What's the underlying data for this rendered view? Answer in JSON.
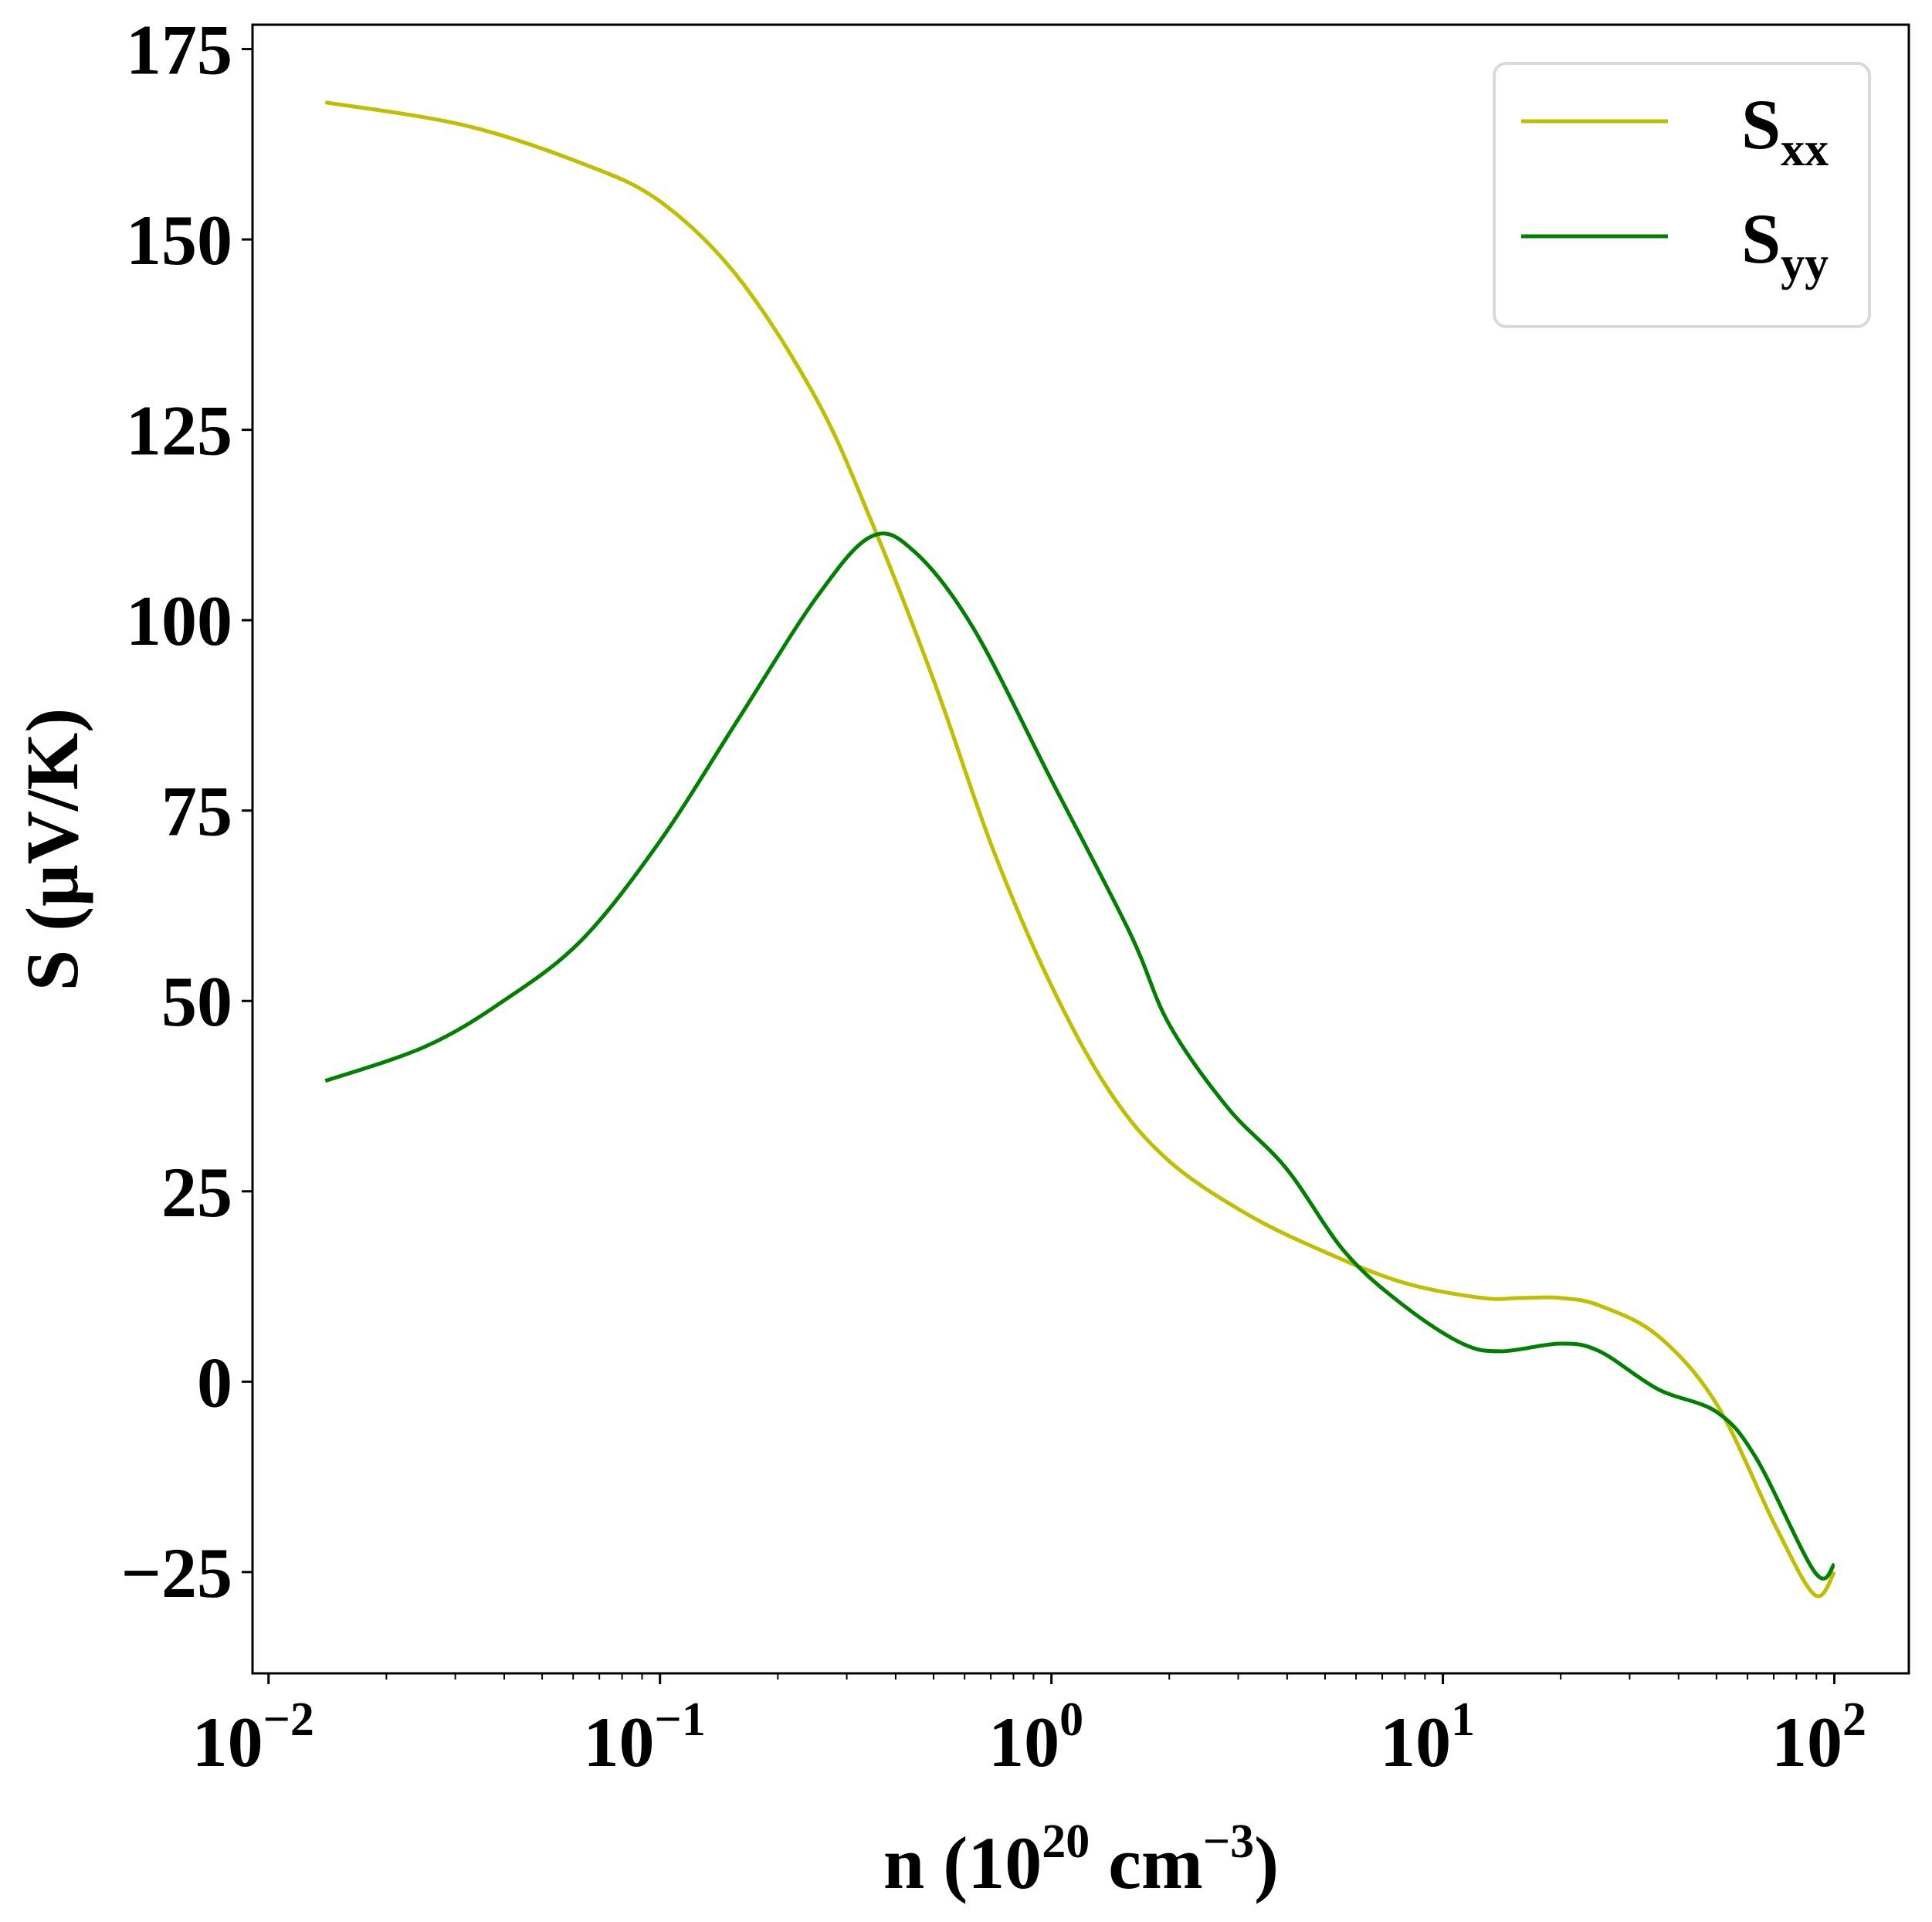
{
  "chart_data": {
    "type": "line",
    "title": "",
    "xlabel": "n (10^20 cm^-3)",
    "xlabel_parts": {
      "main": "n (10",
      "sup1": "20",
      "mid": " cm",
      "sup2": "−3",
      "end": ")"
    },
    "ylabel": "S (μV/K)",
    "xscale": "log",
    "xlim": [
      0.0091,
      155
    ],
    "ylim": [
      -38.3,
      178.2
    ],
    "x_ticks": [
      {
        "value": 0.01,
        "base": "10",
        "exp": "−2"
      },
      {
        "value": 0.1,
        "base": "10",
        "exp": "−1"
      },
      {
        "value": 1,
        "base": "10",
        "exp": "0"
      },
      {
        "value": 10,
        "base": "10",
        "exp": "1"
      },
      {
        "value": 100,
        "base": "10",
        "exp": "2"
      }
    ],
    "y_ticks": [
      {
        "value": -25,
        "label": "−25"
      },
      {
        "value": 0,
        "label": "0"
      },
      {
        "value": 25,
        "label": "25"
      },
      {
        "value": 50,
        "label": "50"
      },
      {
        "value": 75,
        "label": "75"
      },
      {
        "value": 100,
        "label": "100"
      },
      {
        "value": 125,
        "label": "125"
      },
      {
        "value": 150,
        "label": "150"
      },
      {
        "value": 175,
        "label": "175"
      }
    ],
    "grid": false,
    "legend_position": "top-right",
    "series": [
      {
        "name": "Sxx",
        "label_main": "S",
        "label_sub": "xx",
        "color": "#bfbf00",
        "log10_x": [
          -1.855,
          -1.5,
          -1.2,
          -1.0,
          -0.8,
          -0.6,
          -0.46,
          -0.3,
          -0.15,
          0,
          0.15,
          0.3,
          0.5,
          0.7,
          0.9,
          1.1,
          1.2,
          1.3,
          1.4,
          1.55,
          1.7,
          1.85,
          1.95,
          2.0
        ],
        "y": [
          168,
          165,
          160,
          155,
          145,
          129,
          113,
          92,
          70,
          52,
          38,
          29,
          22,
          17,
          13,
          11,
          11,
          11,
          10,
          6,
          -3,
          -19,
          -28,
          -25
        ]
      },
      {
        "name": "Syy",
        "label_main": "S",
        "label_sub": "yy",
        "color": "#008000",
        "log10_x": [
          -1.855,
          -1.6,
          -1.4,
          -1.2,
          -1.0,
          -0.8,
          -0.6,
          -0.46,
          -0.35,
          -0.2,
          0,
          0.2,
          0.3,
          0.45,
          0.6,
          0.75,
          0.9,
          1.05,
          1.15,
          1.3,
          1.4,
          1.55,
          1.7,
          1.8,
          1.95,
          2.0
        ],
        "y": [
          39.5,
          44,
          50,
          58,
          71,
          87,
          103,
          111,
          109,
          99,
          79,
          59,
          47,
          36,
          28,
          17,
          10,
          5,
          4,
          5,
          4,
          -1,
          -4,
          -10,
          -25,
          -24
        ]
      }
    ]
  }
}
